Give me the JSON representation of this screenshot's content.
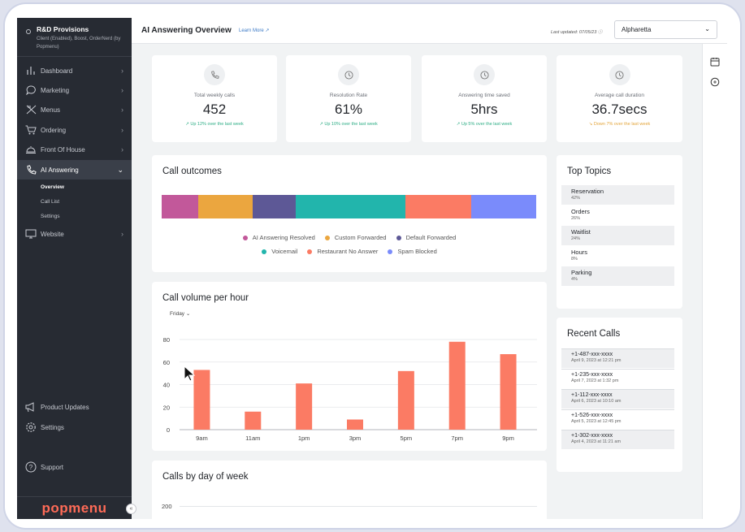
{
  "sidebar": {
    "org_name": "R&D Provisions",
    "org_sub": "Client (Enabled), Boost, OrderNerd (by Popmenu)",
    "items": [
      {
        "label": "Dashboard",
        "icon": "chart-icon"
      },
      {
        "label": "Marketing",
        "icon": "chat-bubble-icon"
      },
      {
        "label": "Menus",
        "icon": "utensils-icon"
      },
      {
        "label": "Ordering",
        "icon": "cart-icon"
      },
      {
        "label": "Front Of House",
        "icon": "bell-icon"
      },
      {
        "label": "AI Answering",
        "icon": "phone-icon"
      },
      {
        "label": "Website",
        "icon": "monitor-icon"
      }
    ],
    "subitems": [
      "Overview",
      "Call List",
      "Settings"
    ],
    "bottom": [
      {
        "label": "Product Updates",
        "icon": "megaphone-icon"
      },
      {
        "label": "Settings",
        "icon": "gear-icon"
      },
      {
        "label": "Support",
        "icon": "help-icon"
      }
    ],
    "brand": "popmenu",
    "collapse_glyph": "«"
  },
  "header": {
    "title": "AI Answering Overview",
    "learn_more": "Learn More",
    "last_updated": "Last updated: 07/05/23",
    "location": "Alpharetta"
  },
  "stats": [
    {
      "label": "Total weekly calls",
      "value": "452",
      "trend": "Up 12% over the last week",
      "direction": "up"
    },
    {
      "label": "Resolution Rate",
      "value": "61%",
      "trend": "Up 10% over the last week",
      "direction": "up"
    },
    {
      "label": "Answering time saved",
      "value": "5hrs",
      "trend": "Up 5% over the last week",
      "direction": "up"
    },
    {
      "label": "Average call duration",
      "value": "36.7secs",
      "trend": "Down 7% over the last week",
      "direction": "down"
    }
  ],
  "outcomes": {
    "title": "Call outcomes",
    "segments": [
      {
        "label": "AI Answering Resolved",
        "color": "#c2589a",
        "share": 0.098
      },
      {
        "label": "Custom Forwarded",
        "color": "#eba63f",
        "share": 0.145
      },
      {
        "label": "Default Forwarded",
        "color": "#5d5896",
        "share": 0.115
      },
      {
        "label": "Voicemail",
        "color": "#22b5ac",
        "share": 0.293
      },
      {
        "label": "Restaurant No Answer",
        "color": "#fb7b64",
        "share": 0.176
      },
      {
        "label": "Spam Blocked",
        "color": "#7a8bfb",
        "share": 0.173
      }
    ]
  },
  "volume": {
    "title": "Call volume per hour",
    "day": "Friday"
  },
  "weekday": {
    "title": "Calls by day of week",
    "first_tick": "200"
  },
  "top_topics": {
    "title": "Top Topics",
    "items": [
      {
        "name": "Reservation",
        "pct": "42%"
      },
      {
        "name": "Orders",
        "pct": "26%"
      },
      {
        "name": "Waitlist",
        "pct": "24%"
      },
      {
        "name": "Hours",
        "pct": "8%"
      },
      {
        "name": "Parking",
        "pct": "4%"
      }
    ]
  },
  "recent_calls": {
    "title": "Recent Calls",
    "items": [
      {
        "number": "+1-487-xxx-xxxx",
        "date": "April 9, 2023 at 12:21 pm"
      },
      {
        "number": "+1-235-xxx-xxxx",
        "date": "April 7, 2023 at 1:32 pm"
      },
      {
        "number": "+1-112-xxx-xxxx",
        "date": "April 6, 2023 at 10:10 am"
      },
      {
        "number": "+1-526-xxx-xxxx",
        "date": "April 5, 2023 at 12:45 pm"
      },
      {
        "number": "+1-302-xxx-xxxx",
        "date": "April 4, 2023 at 11:21 am"
      }
    ]
  },
  "chart_data": [
    {
      "type": "bar",
      "title": "Call volume per hour",
      "categories": [
        "9am",
        "11am",
        "1pm",
        "3pm",
        "5pm",
        "7pm",
        "9pm"
      ],
      "values": [
        53,
        16,
        41,
        9,
        52,
        78,
        67
      ],
      "yticks": [
        "0",
        "20",
        "40",
        "60",
        "80"
      ],
      "ylim": [
        0,
        80
      ],
      "color": "#fb7b64",
      "grid": true
    }
  ]
}
